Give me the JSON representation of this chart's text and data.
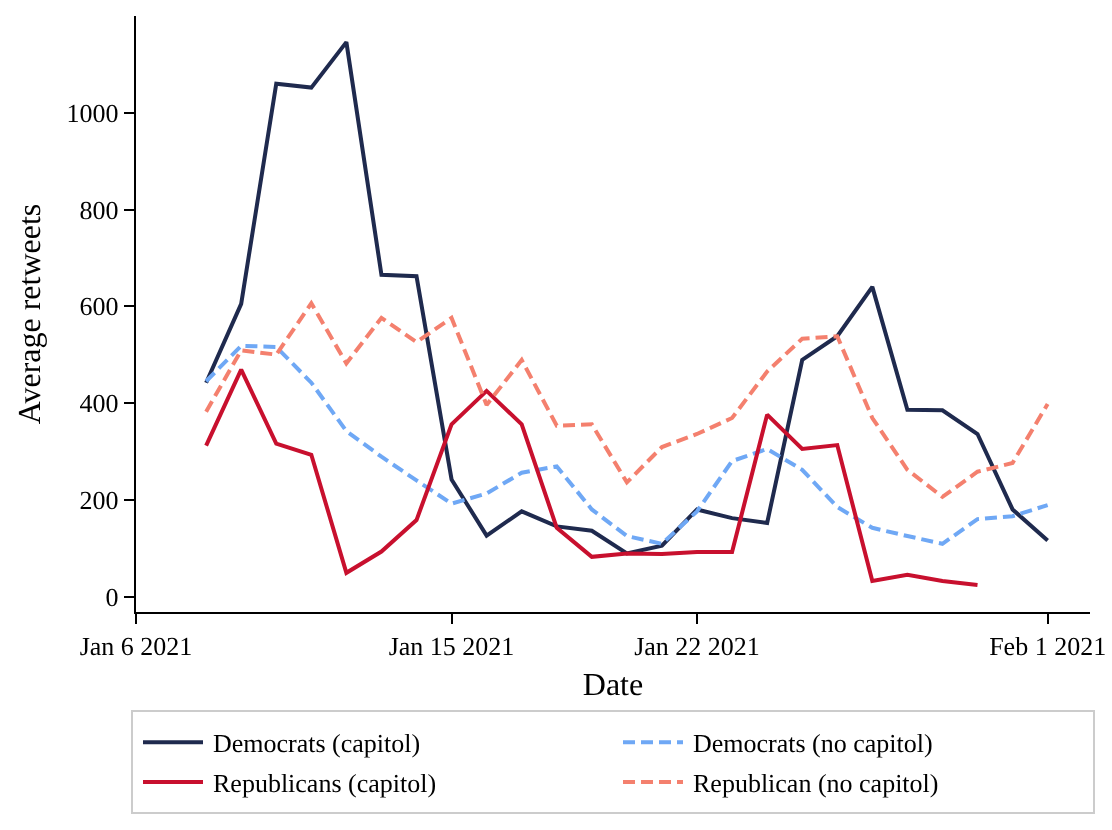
{
  "chart_data": {
    "type": "line",
    "xlabel": "Date",
    "ylabel": "Average retweets",
    "x": [
      "2021-01-08",
      "2021-01-09",
      "2021-01-10",
      "2021-01-11",
      "2021-01-12",
      "2021-01-13",
      "2021-01-14",
      "2021-01-15",
      "2021-01-16",
      "2021-01-17",
      "2021-01-18",
      "2021-01-19",
      "2021-01-20",
      "2021-01-21",
      "2021-01-22",
      "2021-01-23",
      "2021-01-24",
      "2021-01-25",
      "2021-01-26",
      "2021-01-27",
      "2021-01-28",
      "2021-01-29",
      "2021-01-30",
      "2021-01-31",
      "2021-02-01"
    ],
    "series": [
      {
        "name": "Democrats (capitol)",
        "color": "#1f2a4e",
        "line_style": "solid",
        "values": [
          442,
          605,
          1060,
          1052,
          1146,
          665,
          662,
          242,
          126,
          176,
          145,
          136,
          89,
          105,
          180,
          162,
          152,
          489,
          538,
          640,
          386,
          385,
          336,
          180,
          116
        ]
      },
      {
        "name": "Democrats (no capitol)",
        "color": "#6fa8f5",
        "line_style": "dashed",
        "values": [
          445,
          518,
          516,
          442,
          342,
          289,
          240,
          192,
          213,
          256,
          269,
          180,
          125,
          109,
          176,
          280,
          305,
          262,
          185,
          142,
          125,
          109,
          160,
          166,
          189
        ]
      },
      {
        "name": "Republicans (capitol)",
        "color": "#c8102e",
        "line_style": "solid",
        "values": [
          312,
          469,
          316,
          293,
          49,
          93,
          158,
          356,
          425,
          356,
          142,
          82,
          89,
          88,
          92,
          92,
          376,
          305,
          313,
          32,
          45,
          32,
          24,
          null,
          null
        ]
      },
      {
        "name": "Republican (no capitol)",
        "color": "#f4806e",
        "line_style": "dashed",
        "values": [
          382,
          509,
          500,
          606,
          482,
          576,
          526,
          576,
          396,
          489,
          353,
          356,
          236,
          309,
          336,
          369,
          465,
          533,
          538,
          369,
          262,
          206,
          258,
          276,
          398
        ]
      }
    ],
    "xlim": [
      "2021-01-06",
      "2021-02-02T05:00"
    ],
    "xticks": [
      {
        "value": "2021-01-06",
        "label": "Jan 6 2021"
      },
      {
        "value": "2021-01-15",
        "label": "Jan 15 2021"
      },
      {
        "value": "2021-01-22",
        "label": "Jan 22 2021"
      },
      {
        "value": "2021-02-01",
        "label": "Feb 1 2021"
      }
    ],
    "ylim": [
      -32,
      1200
    ],
    "yticks": [
      0,
      200,
      400,
      600,
      800,
      1000
    ],
    "grid": false,
    "legend": "bottom",
    "marker": "none"
  }
}
